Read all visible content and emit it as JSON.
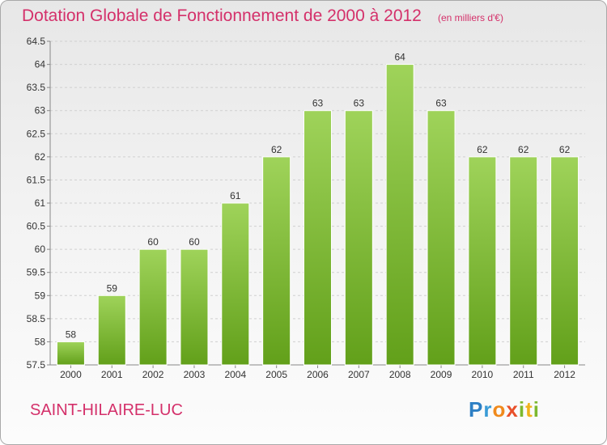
{
  "title": "Dotation Globale de Fonctionnement de 2000 à 2012",
  "unit_label": "(en milliers d'€)",
  "commune": "SAINT-HILAIRE-LUC",
  "logo": {
    "p": "P",
    "r": "r",
    "o": "o",
    "x": "x",
    "i": "i",
    "t": "t",
    "i2": "i"
  },
  "colors": {
    "accent": "#d4306a",
    "bar_light": "#9fd35a",
    "bar_dark": "#62a01a",
    "grid": "#d0d0d0"
  },
  "chart_data": {
    "type": "bar",
    "title": "Dotation Globale de Fonctionnement de 2000 à 2012",
    "xlabel": "",
    "ylabel": "",
    "categories": [
      "2000",
      "2001",
      "2002",
      "2003",
      "2004",
      "2005",
      "2006",
      "2007",
      "2008",
      "2009",
      "2010",
      "2011",
      "2012"
    ],
    "values": [
      58,
      59,
      60,
      60,
      61,
      62,
      63,
      63,
      64,
      63,
      62,
      62,
      62
    ],
    "ylim": [
      57.5,
      64.5
    ],
    "yticks": [
      "57.5",
      "58",
      "58.5",
      "59",
      "59.5",
      "60",
      "60.5",
      "61",
      "61.5",
      "62",
      "62.5",
      "63",
      "63.5",
      "64",
      "64.5"
    ],
    "grid": true
  }
}
